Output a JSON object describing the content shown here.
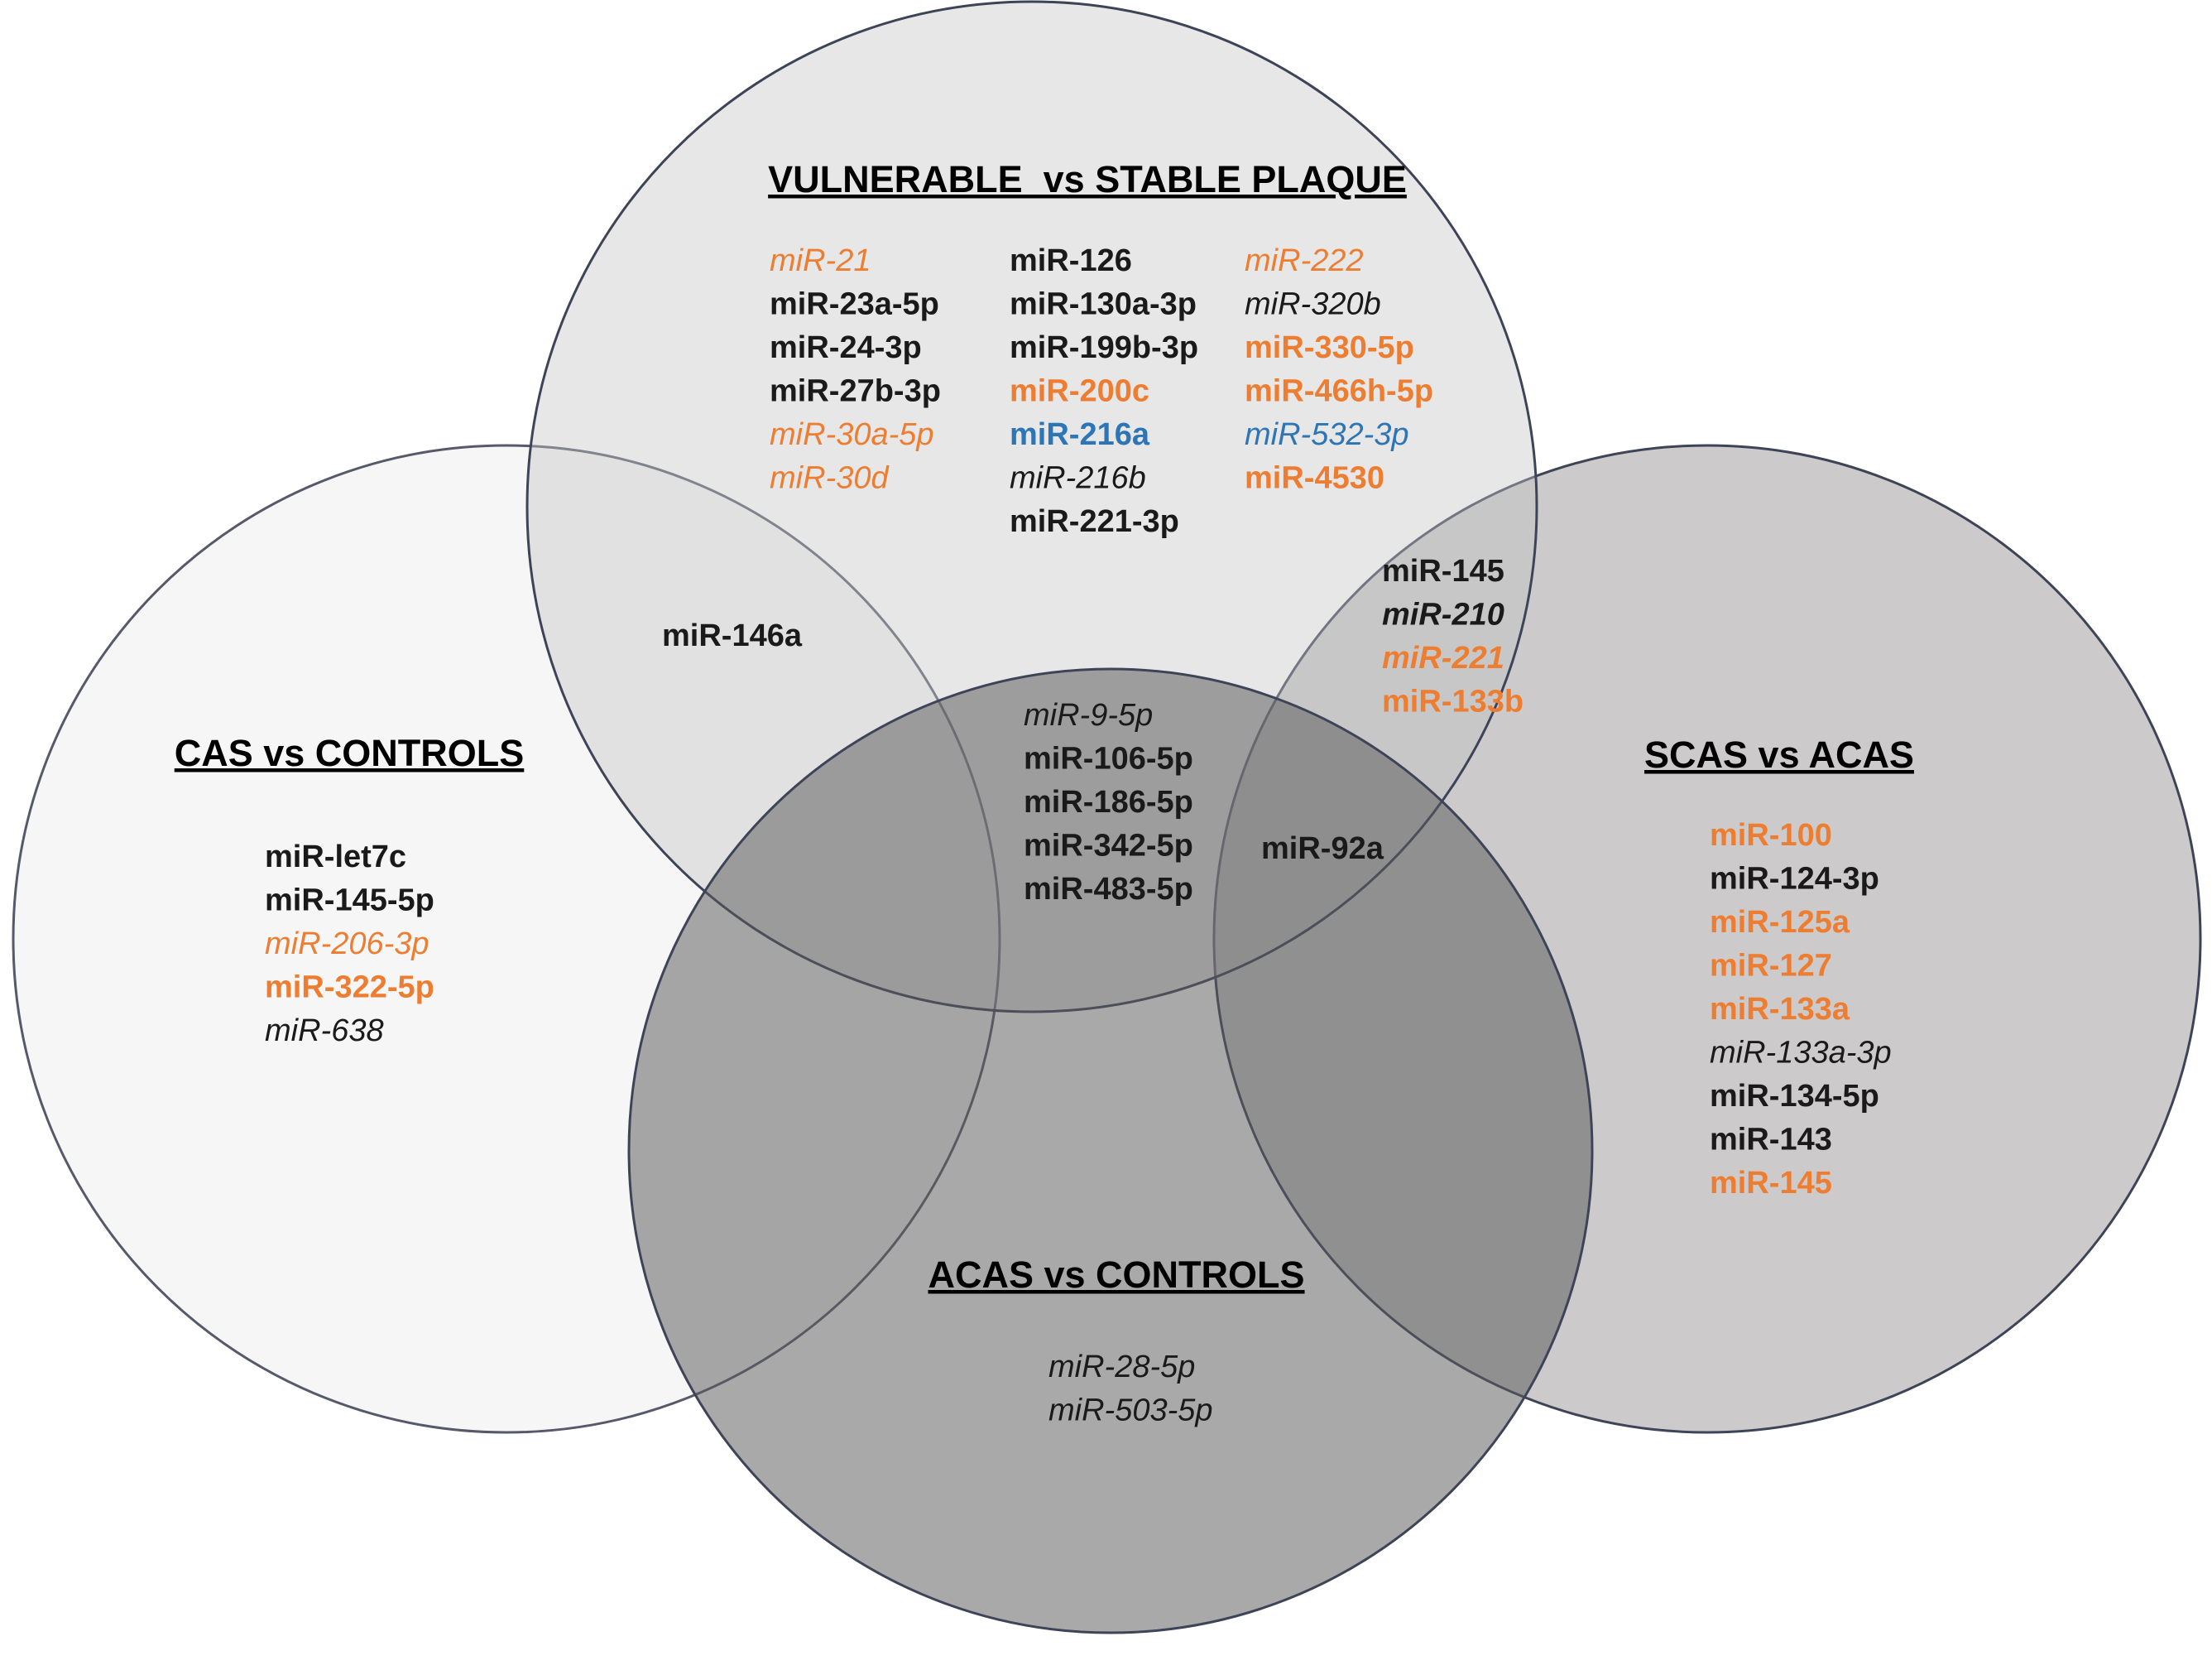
{
  "colors": {
    "black": "#1a1a1a",
    "orange": "#ED7D31",
    "blue": "#2E75B6"
  },
  "sets": {
    "cas": {
      "title": "CAS vs CONTROLS",
      "mirnas": [
        {
          "name": "miR-let7c",
          "color": "black",
          "style": "bold"
        },
        {
          "name": "miR-145-5p",
          "color": "black",
          "style": "bold"
        },
        {
          "name": "miR-206-3p",
          "color": "orange",
          "style": "italic"
        },
        {
          "name": "miR-322-5p",
          "color": "orange",
          "style": "bold"
        },
        {
          "name": "miR-638",
          "color": "black",
          "style": "italic"
        }
      ]
    },
    "vulnerable": {
      "title": "VULNERABLE  vs STABLE PLAQUE",
      "columns": [
        [
          {
            "name": "miR-21",
            "color": "orange",
            "style": "italic"
          },
          {
            "name": "miR-23a-5p",
            "color": "black",
            "style": "bold"
          },
          {
            "name": "miR-24-3p",
            "color": "black",
            "style": "bold"
          },
          {
            "name": "miR-27b-3p",
            "color": "black",
            "style": "bold"
          },
          {
            "name": "miR-30a-5p",
            "color": "orange",
            "style": "italic"
          },
          {
            "name": "miR-30d",
            "color": "orange",
            "style": "italic"
          }
        ],
        [
          {
            "name": "miR-126",
            "color": "black",
            "style": "bold"
          },
          {
            "name": "miR-130a-3p",
            "color": "black",
            "style": "bold"
          },
          {
            "name": "miR-199b-3p",
            "color": "black",
            "style": "bold"
          },
          {
            "name": "miR-200c",
            "color": "orange",
            "style": "bold"
          },
          {
            "name": "miR-216a",
            "color": "blue",
            "style": "bold"
          },
          {
            "name": "miR-216b",
            "color": "black",
            "style": "italic"
          },
          {
            "name": "miR-221-3p",
            "color": "black",
            "style": "bold"
          }
        ],
        [
          {
            "name": "miR-222",
            "color": "orange",
            "style": "italic"
          },
          {
            "name": "miR-320b",
            "color": "black",
            "style": "italic"
          },
          {
            "name": "miR-330-5p",
            "color": "orange",
            "style": "bold"
          },
          {
            "name": "miR-466h-5p",
            "color": "orange",
            "style": "bold"
          },
          {
            "name": "miR-532-3p",
            "color": "blue",
            "style": "italic"
          },
          {
            "name": "miR-4530",
            "color": "orange",
            "style": "bold"
          }
        ]
      ]
    },
    "scas": {
      "title": "SCAS vs ACAS",
      "mirnas": [
        {
          "name": "miR-100",
          "color": "orange",
          "style": "bold"
        },
        {
          "name": "miR-124-3p",
          "color": "black",
          "style": "bold"
        },
        {
          "name": "miR-125a",
          "color": "orange",
          "style": "bold"
        },
        {
          "name": "miR-127",
          "color": "orange",
          "style": "bold"
        },
        {
          "name": "miR-133a",
          "color": "orange",
          "style": "bold"
        },
        {
          "name": "miR-133a-3p",
          "color": "black",
          "style": "italic"
        },
        {
          "name": "miR-134-5p",
          "color": "black",
          "style": "bold"
        },
        {
          "name": "miR-143",
          "color": "black",
          "style": "bold"
        },
        {
          "name": "miR-145",
          "color": "orange",
          "style": "bold"
        }
      ]
    },
    "acas": {
      "title": "ACAS vs CONTROLS",
      "mirnas": [
        {
          "name": "miR-28-5p",
          "color": "black",
          "style": "italic"
        },
        {
          "name": "miR-503-5p",
          "color": "black",
          "style": "italic"
        }
      ]
    }
  },
  "intersections": {
    "cas_vulnerable": [
      {
        "name": "miR-146a",
        "color": "black",
        "style": "bold"
      }
    ],
    "vulnerable_scas": [
      {
        "name": "miR-145",
        "color": "black",
        "style": "bold"
      },
      {
        "name": "miR-210",
        "color": "black",
        "style": "bold-italic"
      },
      {
        "name": "miR-221",
        "color": "orange",
        "style": "bold-italic"
      },
      {
        "name": "miR-133b",
        "color": "orange",
        "style": "bold"
      }
    ],
    "center": [
      {
        "name": "miR-9-5p",
        "color": "black",
        "style": "italic"
      },
      {
        "name": "miR-106-5p",
        "color": "black",
        "style": "bold"
      },
      {
        "name": "miR-186-5p",
        "color": "black",
        "style": "bold"
      },
      {
        "name": "miR-342-5p",
        "color": "black",
        "style": "bold"
      },
      {
        "name": "miR-483-5p",
        "color": "black",
        "style": "bold"
      }
    ],
    "vulnerable_scas_acas": [
      {
        "name": "miR-92a",
        "color": "black",
        "style": "bold"
      }
    ]
  }
}
